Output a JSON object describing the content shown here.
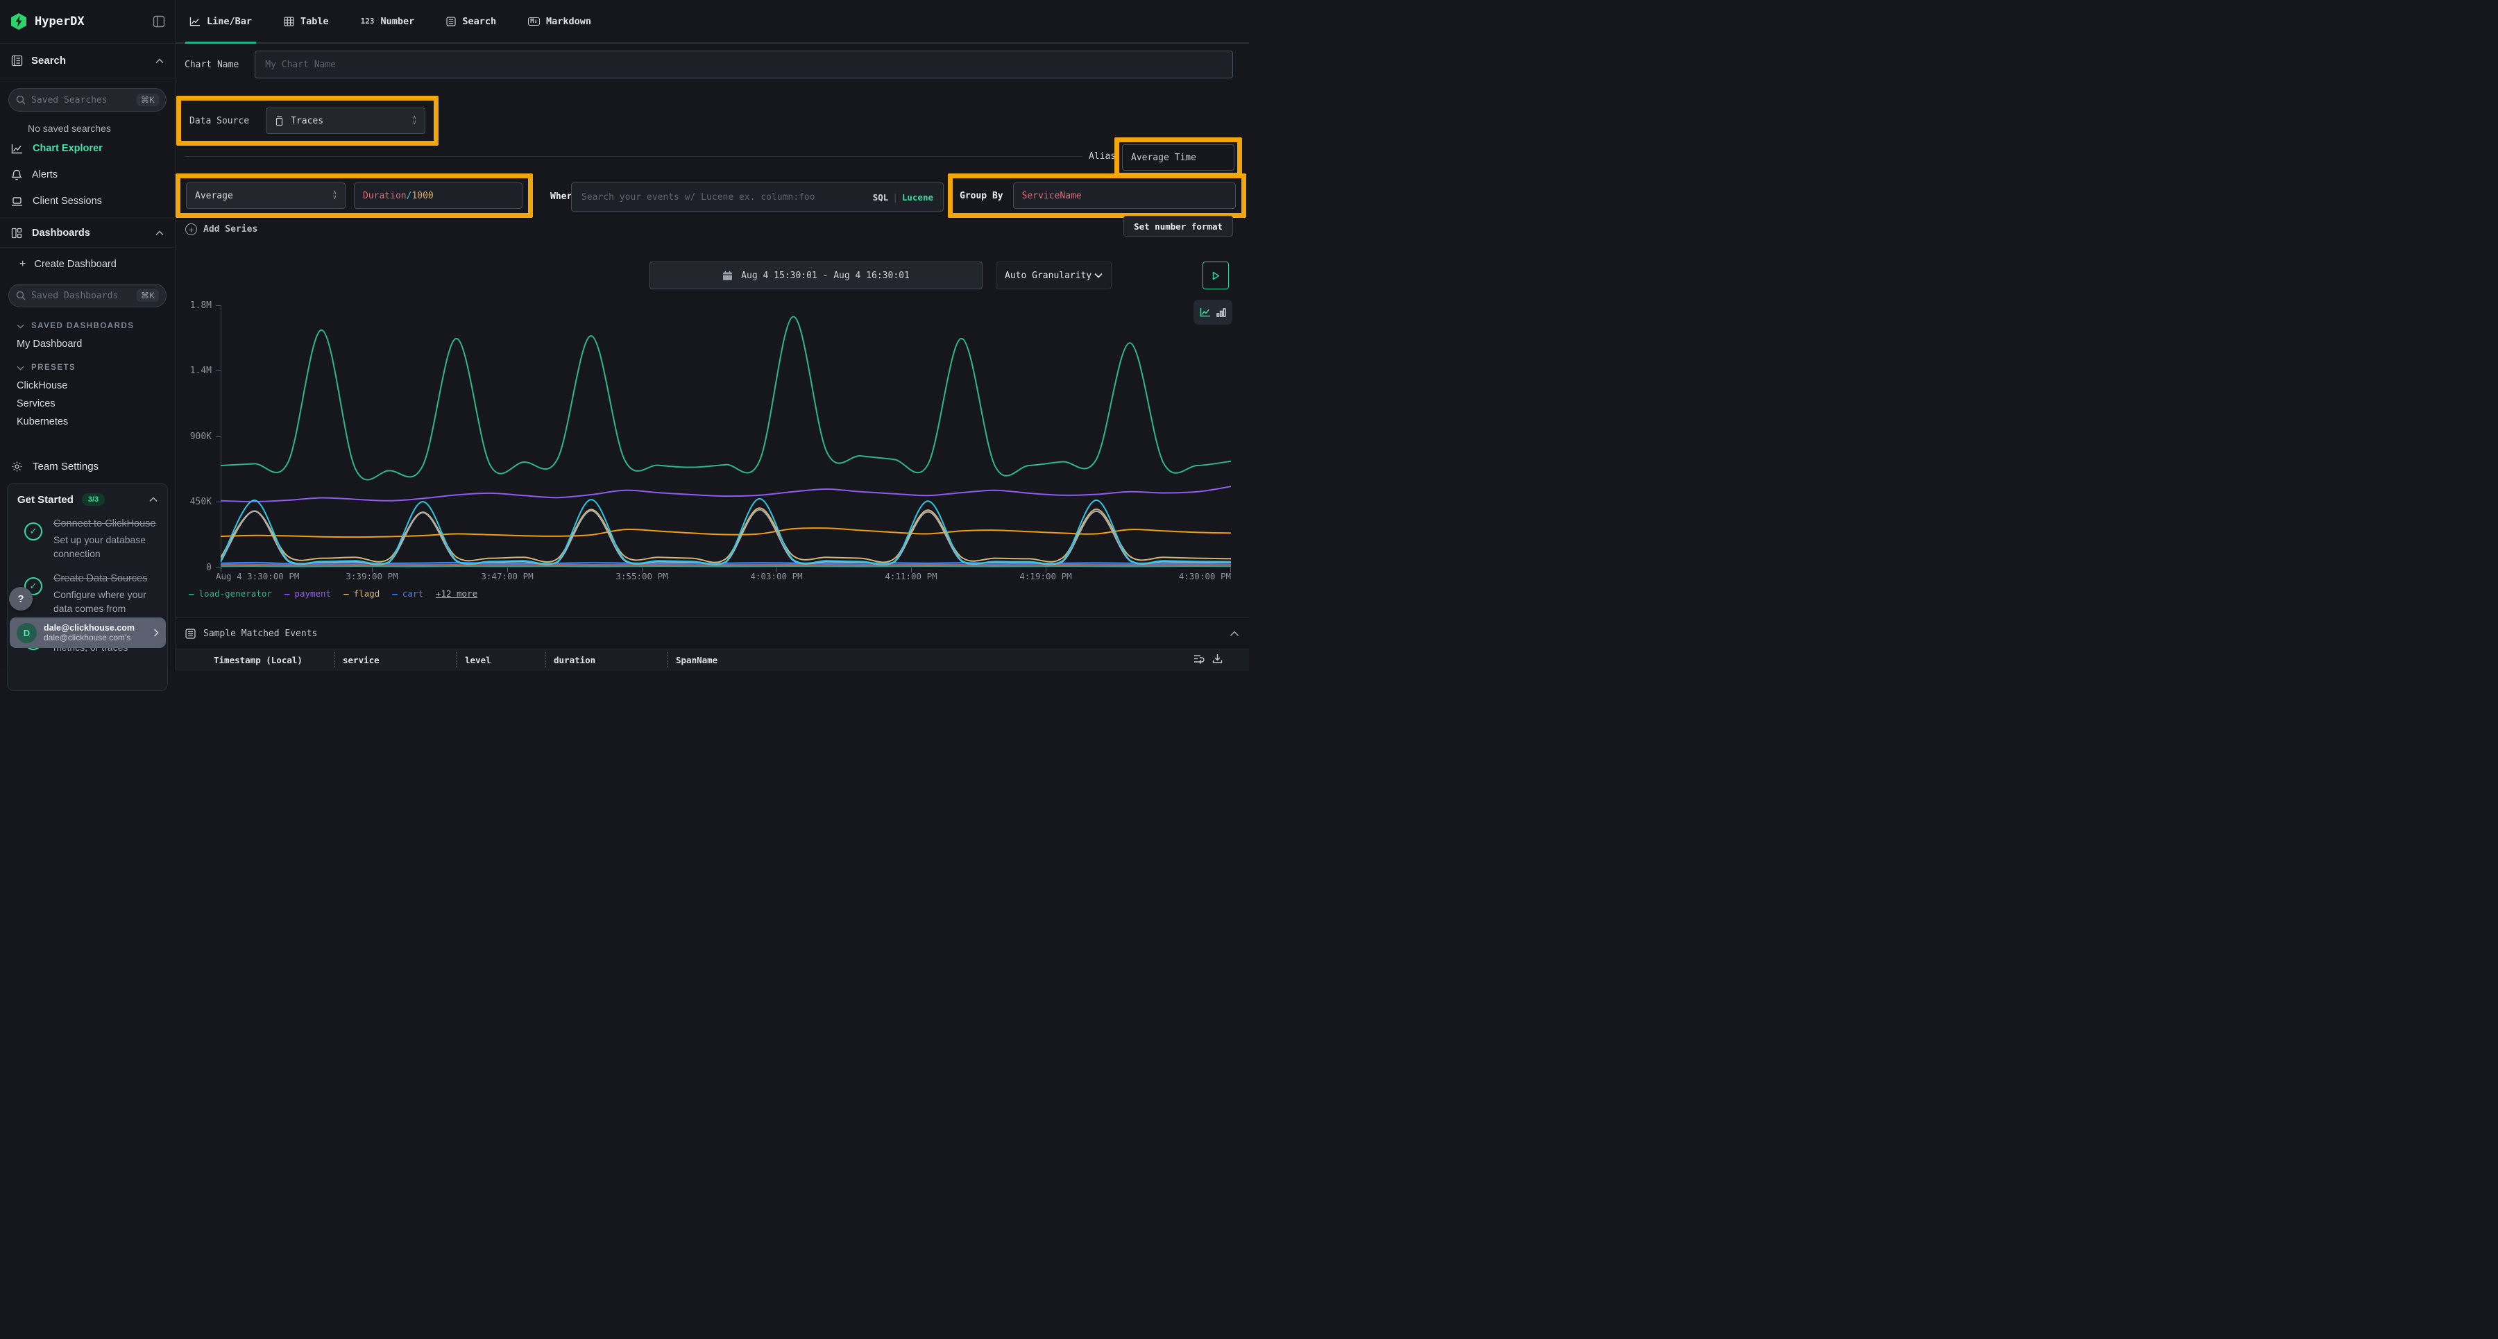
{
  "sidebar": {
    "logo_text": "HyperDX",
    "search_section_label": "Search",
    "saved_searches_placeholder": "Saved Searches",
    "kbd_shortcut": "⌘K",
    "no_saved_searches": "No saved searches",
    "nav": {
      "chart_explorer": "Chart Explorer",
      "alerts": "Alerts",
      "client_sessions": "Client Sessions",
      "dashboards": "Dashboards"
    },
    "create_dashboard": "Create Dashboard",
    "saved_dashboards_placeholder": "Saved Dashboards",
    "sections": {
      "saved": "SAVED DASHBOARDS",
      "presets": "PRESETS"
    },
    "my_dashboard": "My Dashboard",
    "presets": [
      "ClickHouse",
      "Services",
      "Kubernetes"
    ],
    "team_settings": "Team Settings",
    "get_started": {
      "title": "Get Started",
      "badge": "3/3",
      "items": [
        {
          "title": "Connect to ClickHouse",
          "subtitle": "Set up your database connection"
        },
        {
          "title": "Create Data Sources",
          "subtitle": "Configure where your data comes from"
        },
        {
          "title": "",
          "subtitle": "Start sending logs, metrics, or traces"
        }
      ]
    },
    "help_label": "?",
    "user": {
      "initial": "D",
      "name": "dale@clickhouse.com",
      "subtitle": "dale@clickhouse.com's"
    }
  },
  "tabs": {
    "line_bar": "Line/Bar",
    "table": "Table",
    "number": "Number",
    "search": "Search",
    "markdown": "Markdown",
    "number_icon": "123",
    "markdown_icon": "M↓"
  },
  "editor": {
    "chart_name_label": "Chart Name",
    "chart_name_placeholder": "My Chart Name",
    "data_source_label": "Data Source",
    "data_source_value": "Traces",
    "aggregation_value": "Average",
    "metric_expr": {
      "field": "Duration",
      "op": "/",
      "denom": "1000"
    },
    "where_label": "Where",
    "where_placeholder": "Search your events w/ Lucene ex. column:foo",
    "lang_sql": "SQL",
    "lang_sep": "|",
    "lang_lucene": "Lucene",
    "alias_label": "Alias",
    "alias_value": "Average Time",
    "group_by_label": "Group By",
    "group_by_value": "ServiceName",
    "add_series_label": "Add Series",
    "set_number_format_label": "Set number format",
    "date_range_value": "Aug 4 15:30:01 - Aug 4 16:30:01",
    "granularity_value": "Auto Granularity"
  },
  "chart_data": {
    "type": "line",
    "title": "",
    "x_minutes_after_3_30pm": [
      0,
      2,
      4,
      6,
      8,
      10,
      12,
      14,
      16,
      18,
      20,
      22,
      24,
      26,
      28,
      30,
      32,
      34,
      36,
      38,
      40,
      42,
      44,
      46,
      48,
      50,
      52,
      54,
      56,
      58,
      60
    ],
    "xticklabels": [
      "Aug 4 3:30:00 PM",
      "3:39:00 PM",
      "3:47:00 PM",
      "3:55:00 PM",
      "4:03:00 PM",
      "4:11:00 PM",
      "4:19:00 PM",
      "4:30:00 PM"
    ],
    "xtick_minutes": [
      0,
      9,
      17,
      25,
      33,
      41,
      49,
      60
    ],
    "yticklabels": [
      "1.8M",
      "1.4M",
      "900K",
      "450K",
      "0"
    ],
    "yticks": [
      1800000,
      1350000,
      900000,
      450000,
      0
    ],
    "ylim": [
      0,
      1800000
    ],
    "values_unit": "thousands (K)",
    "grid": false,
    "legend": {
      "position": "bottom",
      "visible": [
        "load-generator",
        "payment",
        "flagd",
        "cart"
      ],
      "more": "+12 more"
    },
    "series": [
      {
        "name": "series-teal-flat",
        "color": "#2aa198",
        "width": 1.5,
        "values": [
          7,
          8,
          6,
          7,
          8,
          7,
          6,
          8,
          7,
          7,
          8,
          6,
          7,
          8,
          7,
          6,
          7,
          8,
          7,
          6,
          7,
          8,
          7,
          6,
          7,
          8,
          7,
          6,
          7,
          8,
          7
        ]
      },
      {
        "name": "series-blue-flat",
        "color": "#4477dd",
        "width": 1.5,
        "values": [
          22,
          23,
          21,
          22,
          23,
          22,
          21,
          23,
          22,
          22,
          23,
          21,
          22,
          23,
          22,
          21,
          22,
          23,
          22,
          21,
          22,
          23,
          22,
          21,
          22,
          23,
          22,
          21,
          22,
          23,
          22
        ]
      },
      {
        "name": "series-red-flat",
        "color": "#e8643f",
        "width": 1.5,
        "values": [
          14,
          15,
          13,
          14,
          15,
          14,
          13,
          15,
          14,
          14,
          15,
          13,
          14,
          15,
          14,
          13,
          14,
          15,
          14,
          13,
          14,
          15,
          14,
          13,
          14,
          15,
          14,
          13,
          14,
          15,
          14
        ]
      },
      {
        "name": "cart",
        "color": "#3b82f6",
        "width": 2,
        "values": [
          30,
          34,
          28,
          30,
          32,
          29,
          31,
          34,
          30,
          28,
          30,
          33,
          31,
          29,
          31,
          30,
          33,
          31,
          29,
          30,
          32,
          30,
          33,
          30,
          28,
          30,
          32,
          30,
          29,
          30,
          32
        ]
      },
      {
        "name": "series-orange",
        "color": "#f59e0b",
        "width": 2,
        "values": [
          214,
          220,
          217,
          211,
          209,
          212,
          219,
          231,
          225,
          218,
          215,
          224,
          261,
          250,
          236,
          226,
          231,
          266,
          270,
          255,
          241,
          231,
          251,
          256,
          246,
          236,
          231,
          261,
          251,
          241,
          236
        ]
      },
      {
        "name": "payment",
        "color": "#8e5cf0",
        "width": 2,
        "values": [
          458,
          452,
          462,
          478,
          468,
          458,
          474,
          498,
          510,
          494,
          480,
          500,
          530,
          514,
          500,
          490,
          496,
          520,
          538,
          520,
          506,
          494,
          514,
          530,
          510,
          496,
          502,
          520,
          512,
          520,
          556
        ]
      },
      {
        "name": "flagd",
        "color": "#d6b370",
        "width": 2,
        "values": [
          70,
          388,
          76,
          64,
          70,
          60,
          380,
          72,
          64,
          70,
          60,
          398,
          76,
          70,
          64,
          60,
          408,
          80,
          70,
          64,
          60,
          394,
          70,
          64,
          60,
          66,
          400,
          76,
          70,
          64,
          60
        ]
      },
      {
        "name": "series-gray",
        "color": "#a8adb5",
        "width": 2,
        "values": [
          40,
          386,
          44,
          38,
          40,
          36,
          376,
          44,
          38,
          40,
          36,
          390,
          46,
          40,
          38,
          36,
          396,
          48,
          40,
          38,
          36,
          382,
          44,
          38,
          36,
          40,
          386,
          46,
          40,
          38,
          36
        ]
      },
      {
        "name": "series-cyan",
        "color": "#29c8e8",
        "width": 2,
        "values": [
          46,
          462,
          50,
          42,
          46,
          40,
          452,
          48,
          42,
          46,
          40,
          466,
          52,
          46,
          42,
          40,
          472,
          54,
          46,
          42,
          40,
          456,
          48,
          42,
          40,
          46,
          462,
          50,
          46,
          42,
          40
        ]
      },
      {
        "name": "load-generator",
        "color": "#2eb88a",
        "width": 2,
        "values": [
          700,
          712,
          722,
          1630,
          678,
          665,
          698,
          1572,
          704,
          724,
          744,
          1590,
          736,
          702,
          688,
          706,
          730,
          1722,
          792,
          766,
          742,
          706,
          1572,
          694,
          700,
          726,
          742,
          1542,
          716,
          700,
          730
        ]
      }
    ]
  },
  "events_table": {
    "title": "Sample Matched Events",
    "columns": [
      "Timestamp (Local)",
      "service",
      "level",
      "duration",
      "SpanName"
    ]
  }
}
